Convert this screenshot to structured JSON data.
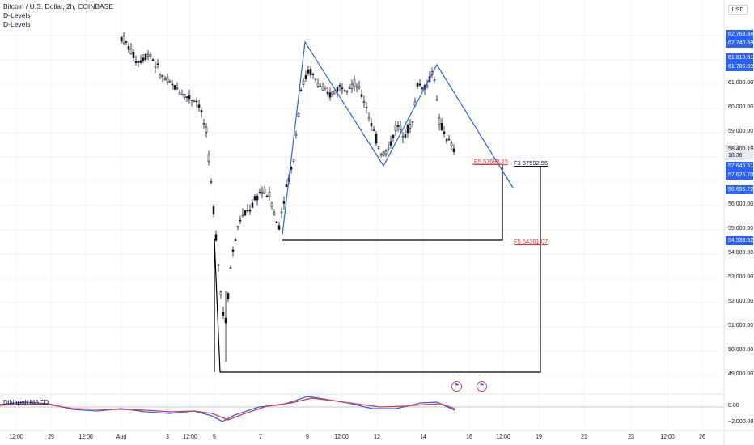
{
  "legend": {
    "symbol": "Bitcoin / U.S. Dollar, 2h, COINBASE",
    "indicator1": "D-Levels",
    "indicator2": "D-Levels",
    "macd": "DiNapoli MACD"
  },
  "currency": "USD",
  "colors": {
    "up": "#131722",
    "pattern": "#2962ff",
    "fib_red": "#e03b3b",
    "box": "#000000",
    "macd_blue": "#2962ff",
    "macd_red": "#e03b3b",
    "tag_blue": "#2962ff",
    "tag_gray": "#d1d4dc"
  },
  "price_axis": [
    "62,000.00",
    "61,000.00",
    "60,000.00",
    "59,000.00",
    "56,000.00",
    "55,000.00",
    "54,000.00",
    "53,000.00",
    "52,000.00",
    "51,000.00",
    "50,000.00",
    "49,000.00"
  ],
  "price_tags": [
    {
      "text": "62,763.84",
      "style": "blue"
    },
    {
      "text": "62,740.59",
      "style": "blue"
    },
    {
      "text": "61,810.61",
      "style": "blue"
    },
    {
      "text": "61,786.59",
      "style": "blue"
    },
    {
      "text": "58,400.19",
      "style": "gray"
    },
    {
      "text": "18:36",
      "style": "gray"
    },
    {
      "text": "57,646.51",
      "style": "blue"
    },
    {
      "text": "57,625.70",
      "style": "blue"
    },
    {
      "text": "56,695.72",
      "style": "blue"
    },
    {
      "text": "54,533.52",
      "style": "blue"
    }
  ],
  "macd_axis": [
    "0.00",
    "−2,000.00"
  ],
  "time_axis": [
    "12:00",
    "29",
    "12:00",
    "Aug",
    "3",
    "12:00",
    "5",
    "7",
    "9",
    "12:00",
    "12",
    "14",
    "16",
    "12:00",
    "19",
    "21",
    "23",
    "12:00",
    "26"
  ],
  "fib_labels": {
    "f5_upper": "F5  57693.15",
    "f3": "F3  57592.55",
    "f5_lower": "F5  54361.07"
  },
  "flag_icons": [
    "us-flag-icon",
    "us-flag-icon"
  ]
}
